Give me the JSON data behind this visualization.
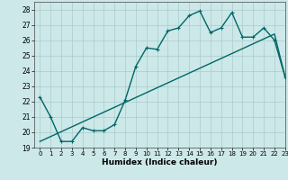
{
  "title": "",
  "xlabel": "Humidex (Indice chaleur)",
  "ylabel": "",
  "bg_color": "#cce8e8",
  "grid_color": "#aacccc",
  "line_color": "#006666",
  "xlim": [
    -0.5,
    23
  ],
  "ylim": [
    19,
    28.5
  ],
  "xticks": [
    0,
    1,
    2,
    3,
    4,
    5,
    6,
    7,
    8,
    9,
    10,
    11,
    12,
    13,
    14,
    15,
    16,
    17,
    18,
    19,
    20,
    21,
    22,
    23
  ],
  "yticks": [
    19,
    20,
    21,
    22,
    23,
    24,
    25,
    26,
    27,
    28
  ],
  "line1_x": [
    0,
    1,
    2,
    3,
    4,
    5,
    6,
    7,
    8,
    9,
    10,
    11,
    12,
    13,
    14,
    15,
    16,
    17,
    18,
    19,
    20,
    21,
    22,
    23
  ],
  "line1_y": [
    22.3,
    21.0,
    19.4,
    19.4,
    20.3,
    20.1,
    20.1,
    20.5,
    22.1,
    24.3,
    25.5,
    25.4,
    26.6,
    26.8,
    27.6,
    27.9,
    26.5,
    26.8,
    27.8,
    26.2,
    26.2,
    26.8,
    26.0,
    23.6
  ],
  "line2_x": [
    0,
    22,
    23
  ],
  "line2_y": [
    19.4,
    26.4,
    23.6
  ],
  "marker_size": 2.5,
  "line_width": 1.0
}
